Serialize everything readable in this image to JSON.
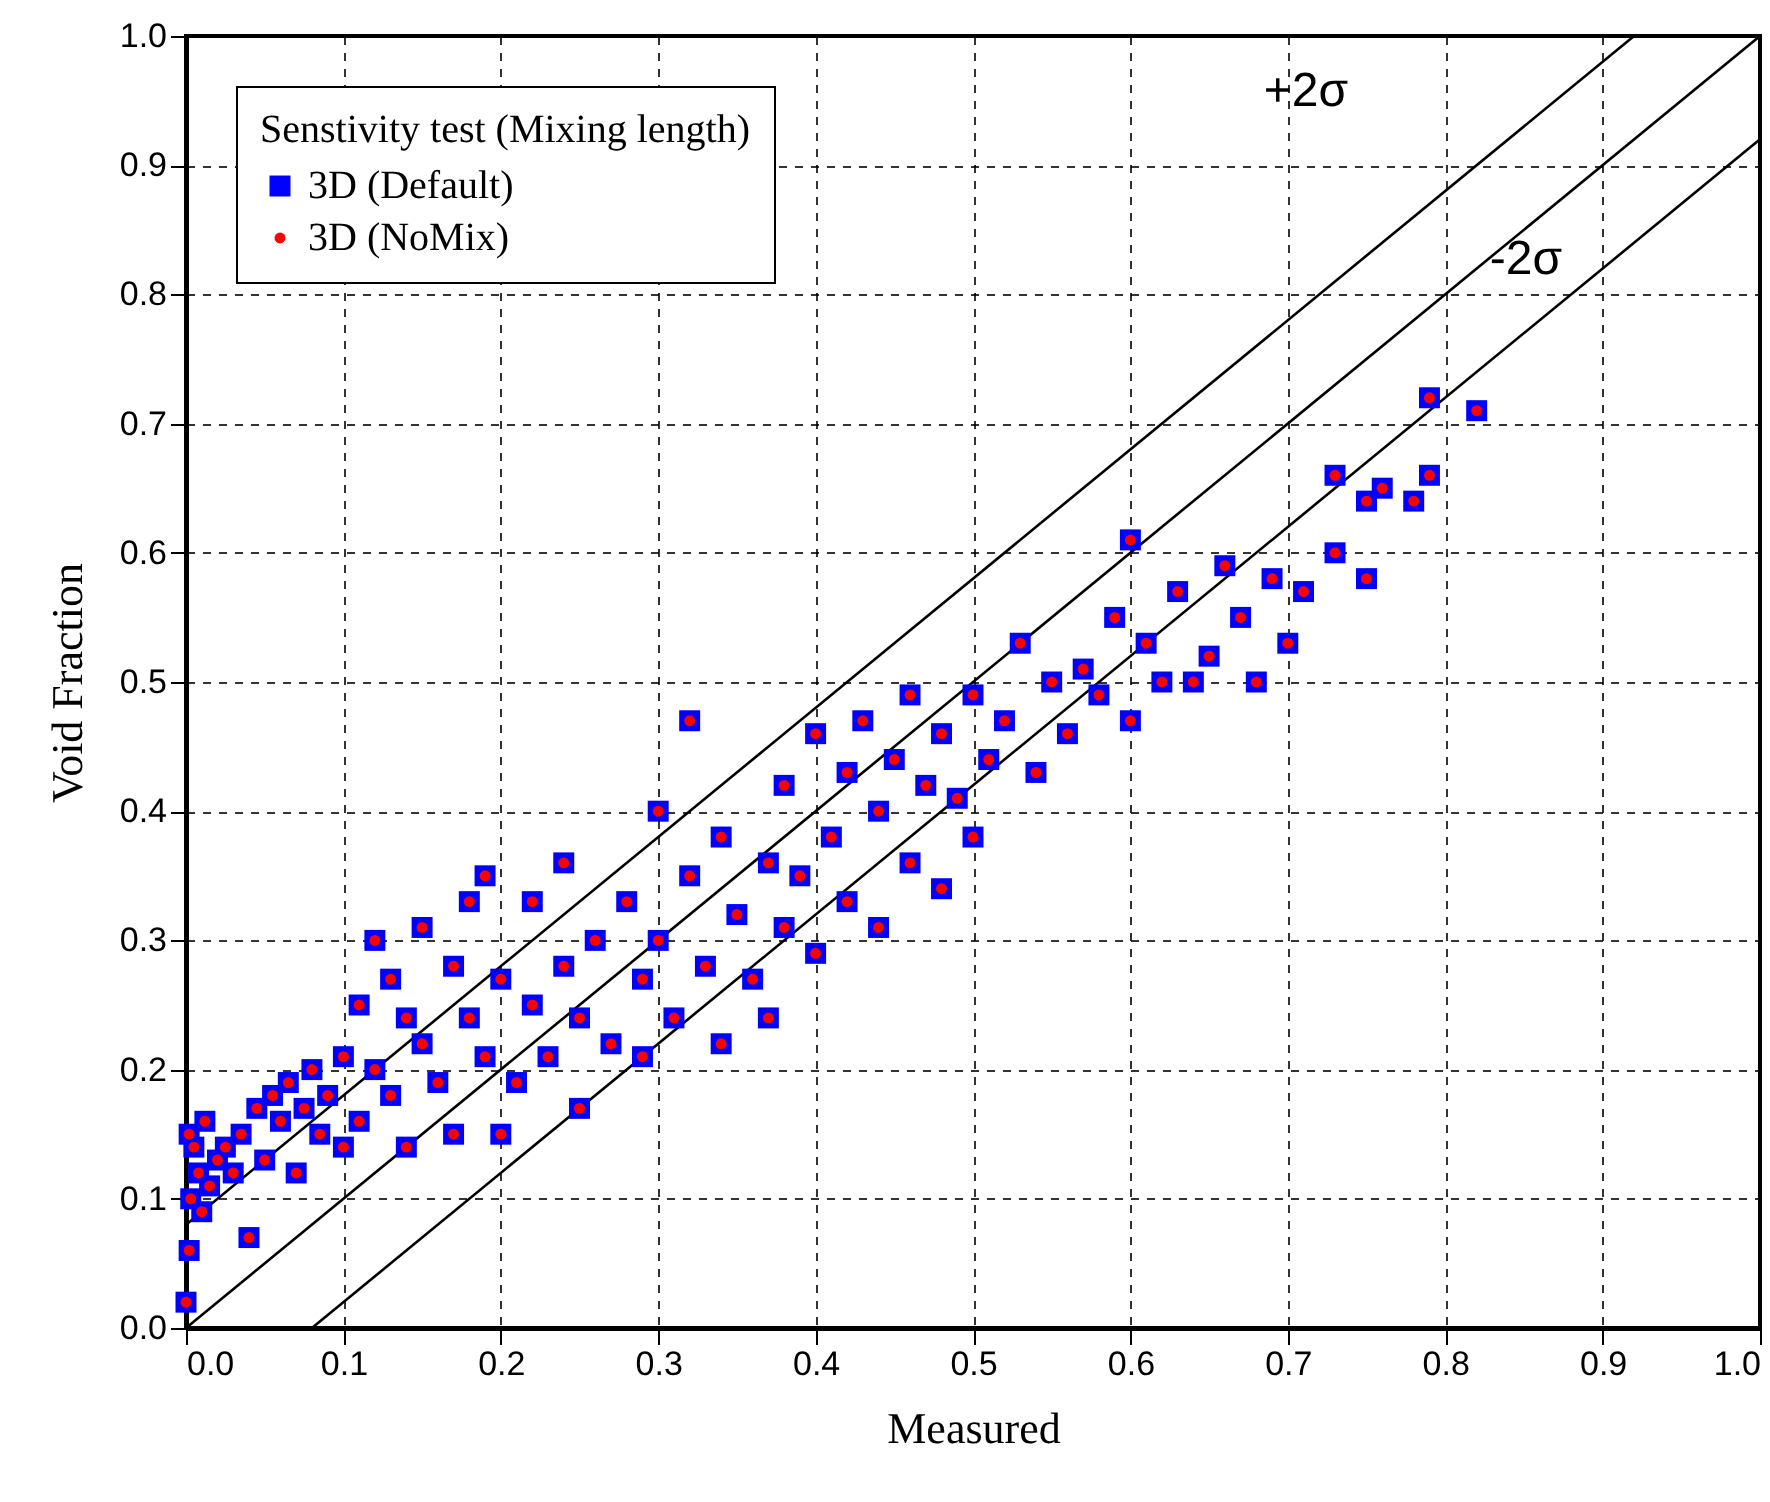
{
  "chart_data": {
    "type": "scatter",
    "xlabel": "Measured",
    "ylabel": "Void Fraction",
    "legend_title": "Senstivity test (Mixing length)",
    "legend": "top left",
    "grid": true,
    "xlim": [
      0,
      1
    ],
    "ylim": [
      0,
      1
    ],
    "xticks": [
      {
        "value": 0,
        "label": "0.0"
      },
      0.1,
      0.2,
      0.3,
      0.4,
      0.5,
      0.6,
      0.7,
      0.8,
      0.9,
      {
        "value": 1,
        "label": "1.0"
      }
    ],
    "yticks": [
      {
        "value": 0,
        "label": "0.0"
      },
      0.1,
      0.2,
      0.3,
      0.4,
      0.5,
      0.6,
      0.7,
      0.8,
      0.9,
      {
        "value": 1,
        "label": "1.0"
      }
    ],
    "annotations": [
      "+2σ",
      "-2σ"
    ],
    "series": [
      {
        "name": "3D (Default)",
        "color": "#0000ff",
        "marker": "square",
        "x": [
          0,
          0.002,
          0.003,
          0.005,
          0.002,
          0.008,
          0.01,
          0.012,
          0.015,
          0.02,
          0.025,
          0.03,
          0.035,
          0.04,
          0.045,
          0.05,
          0.055,
          0.06,
          0.065,
          0.07,
          0.075,
          0.08,
          0.085,
          0.09,
          0.1,
          0.1,
          0.11,
          0.11,
          0.12,
          0.12,
          0.13,
          0.13,
          0.14,
          0.14,
          0.15,
          0.15,
          0.16,
          0.17,
          0.17,
          0.18,
          0.18,
          0.19,
          0.19,
          0.2,
          0.2,
          0.21,
          0.22,
          0.22,
          0.23,
          0.24,
          0.24,
          0.25,
          0.25,
          0.26,
          0.27,
          0.28,
          0.29,
          0.29,
          0.3,
          0.3,
          0.31,
          0.32,
          0.32,
          0.33,
          0.34,
          0.34,
          0.35,
          0.36,
          0.37,
          0.37,
          0.38,
          0.38,
          0.39,
          0.4,
          0.4,
          0.41,
          0.42,
          0.42,
          0.43,
          0.44,
          0.44,
          0.45,
          0.46,
          0.46,
          0.47,
          0.48,
          0.48,
          0.49,
          0.5,
          0.5,
          0.51,
          0.52,
          0.53,
          0.54,
          0.55,
          0.56,
          0.57,
          0.58,
          0.59,
          0.6,
          0.6,
          0.61,
          0.62,
          0.63,
          0.64,
          0.65,
          0.66,
          0.67,
          0.68,
          0.69,
          0.7,
          0.71,
          0.73,
          0.73,
          0.75,
          0.75,
          0.76,
          0.78,
          0.79,
          0.79,
          0.82
        ],
        "values": [
          0.02,
          0.06,
          0.1,
          0.14,
          0.15,
          0.12,
          0.09,
          0.16,
          0.11,
          0.13,
          0.14,
          0.12,
          0.15,
          0.07,
          0.17,
          0.13,
          0.18,
          0.16,
          0.19,
          0.12,
          0.17,
          0.2,
          0.15,
          0.18,
          0.14,
          0.21,
          0.16,
          0.25,
          0.2,
          0.3,
          0.18,
          0.27,
          0.24,
          0.14,
          0.31,
          0.22,
          0.19,
          0.28,
          0.15,
          0.33,
          0.24,
          0.35,
          0.21,
          0.27,
          0.15,
          0.19,
          0.25,
          0.33,
          0.21,
          0.28,
          0.36,
          0.24,
          0.17,
          0.3,
          0.22,
          0.33,
          0.27,
          0.21,
          0.4,
          0.3,
          0.24,
          0.35,
          0.47,
          0.28,
          0.22,
          0.38,
          0.32,
          0.27,
          0.36,
          0.24,
          0.42,
          0.31,
          0.35,
          0.29,
          0.46,
          0.38,
          0.33,
          0.43,
          0.47,
          0.4,
          0.31,
          0.44,
          0.36,
          0.49,
          0.42,
          0.46,
          0.34,
          0.41,
          0.49,
          0.38,
          0.44,
          0.47,
          0.53,
          0.43,
          0.5,
          0.46,
          0.51,
          0.49,
          0.55,
          0.47,
          0.61,
          0.53,
          0.5,
          0.57,
          0.5,
          0.52,
          0.59,
          0.55,
          0.5,
          0.58,
          0.53,
          0.57,
          0.6,
          0.66,
          0.64,
          0.58,
          0.65,
          0.64,
          0.72,
          0.66,
          0.71
        ]
      },
      {
        "name": "3D (NoMix)",
        "color": "#ff0000",
        "marker": "circle",
        "x": [
          0,
          0.002,
          0.003,
          0.005,
          0.002,
          0.008,
          0.01,
          0.012,
          0.015,
          0.02,
          0.025,
          0.03,
          0.035,
          0.04,
          0.045,
          0.05,
          0.055,
          0.06,
          0.065,
          0.07,
          0.075,
          0.08,
          0.085,
          0.09,
          0.1,
          0.1,
          0.11,
          0.11,
          0.12,
          0.12,
          0.13,
          0.13,
          0.14,
          0.14,
          0.15,
          0.15,
          0.16,
          0.17,
          0.17,
          0.18,
          0.18,
          0.19,
          0.19,
          0.2,
          0.2,
          0.21,
          0.22,
          0.22,
          0.23,
          0.24,
          0.24,
          0.25,
          0.25,
          0.26,
          0.27,
          0.28,
          0.29,
          0.29,
          0.3,
          0.3,
          0.31,
          0.32,
          0.32,
          0.33,
          0.34,
          0.34,
          0.35,
          0.36,
          0.37,
          0.37,
          0.38,
          0.38,
          0.39,
          0.4,
          0.4,
          0.41,
          0.42,
          0.42,
          0.43,
          0.44,
          0.44,
          0.45,
          0.46,
          0.46,
          0.47,
          0.48,
          0.48,
          0.49,
          0.5,
          0.5,
          0.51,
          0.52,
          0.53,
          0.54,
          0.55,
          0.56,
          0.57,
          0.58,
          0.59,
          0.6,
          0.6,
          0.61,
          0.62,
          0.63,
          0.64,
          0.65,
          0.66,
          0.67,
          0.68,
          0.69,
          0.7,
          0.71,
          0.73,
          0.73,
          0.75,
          0.75,
          0.76,
          0.78,
          0.79,
          0.79,
          0.82
        ],
        "values": [
          0.02,
          0.06,
          0.1,
          0.14,
          0.15,
          0.12,
          0.09,
          0.16,
          0.11,
          0.13,
          0.14,
          0.12,
          0.15,
          0.07,
          0.17,
          0.13,
          0.18,
          0.16,
          0.19,
          0.12,
          0.17,
          0.2,
          0.15,
          0.18,
          0.14,
          0.21,
          0.16,
          0.25,
          0.2,
          0.3,
          0.18,
          0.27,
          0.24,
          0.14,
          0.31,
          0.22,
          0.19,
          0.28,
          0.15,
          0.33,
          0.24,
          0.35,
          0.21,
          0.27,
          0.15,
          0.19,
          0.25,
          0.33,
          0.21,
          0.28,
          0.36,
          0.24,
          0.17,
          0.3,
          0.22,
          0.33,
          0.27,
          0.21,
          0.4,
          0.3,
          0.24,
          0.35,
          0.47,
          0.28,
          0.22,
          0.38,
          0.32,
          0.27,
          0.36,
          0.24,
          0.42,
          0.31,
          0.35,
          0.29,
          0.46,
          0.38,
          0.33,
          0.43,
          0.47,
          0.4,
          0.31,
          0.44,
          0.36,
          0.49,
          0.42,
          0.46,
          0.34,
          0.41,
          0.49,
          0.38,
          0.44,
          0.47,
          0.53,
          0.43,
          0.5,
          0.46,
          0.51,
          0.49,
          0.55,
          0.47,
          0.61,
          0.53,
          0.5,
          0.57,
          0.5,
          0.52,
          0.59,
          0.55,
          0.5,
          0.58,
          0.53,
          0.57,
          0.6,
          0.66,
          0.64,
          0.58,
          0.65,
          0.64,
          0.72,
          0.66,
          0.71
        ]
      },
      {
        "type": "line",
        "color": "#000000",
        "line_style": "solid",
        "x": [
          0,
          0.92
        ],
        "values": [
          0.08,
          1
        ]
      },
      {
        "type": "line",
        "color": "#000000",
        "line_style": "solid",
        "x": [
          0,
          1
        ],
        "values": [
          0,
          1
        ]
      },
      {
        "type": "line",
        "color": "#000000",
        "line_style": "solid",
        "x": [
          0.08,
          1
        ],
        "values": [
          0,
          0.92
        ]
      }
    ]
  }
}
